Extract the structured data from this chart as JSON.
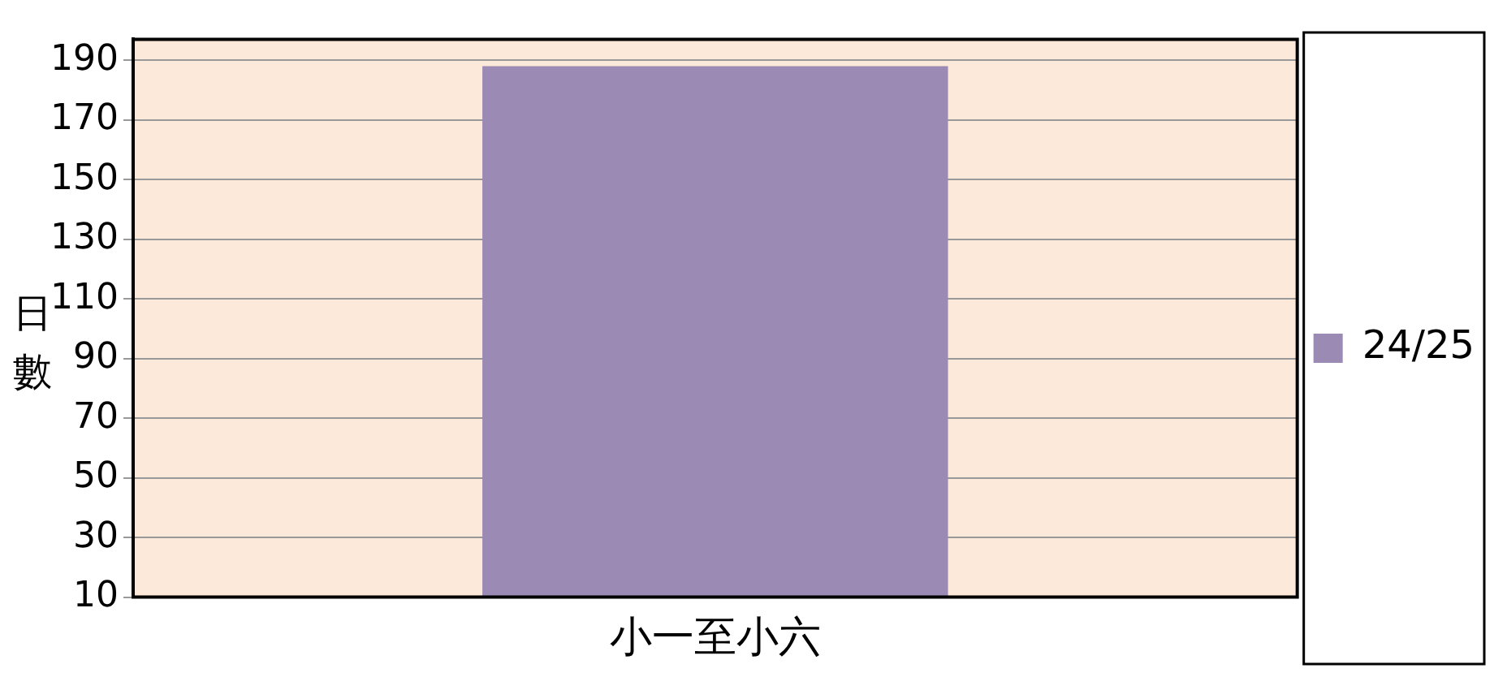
{
  "chart_data": {
    "type": "bar",
    "ylabel": "日數",
    "categories": [
      "小一至小六"
    ],
    "series": [
      {
        "name": "24/25",
        "color": "#9b8ab4",
        "values": [
          188
        ]
      }
    ],
    "ylim": [
      10,
      197
    ],
    "yticks": [
      10,
      30,
      50,
      70,
      90,
      110,
      130,
      150,
      170,
      190
    ],
    "grid": "y",
    "legend": "right"
  }
}
